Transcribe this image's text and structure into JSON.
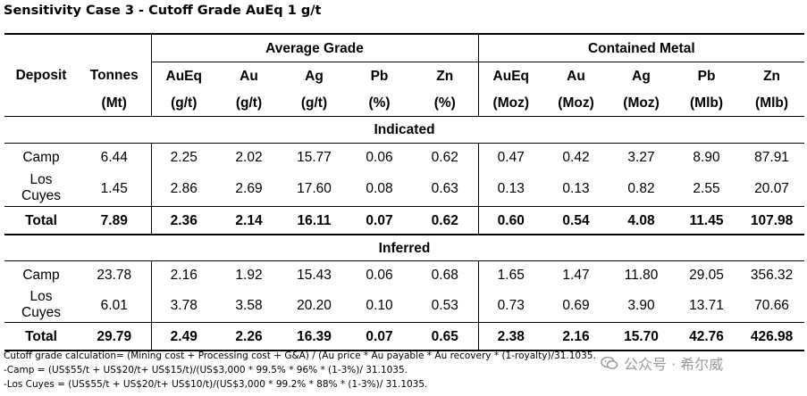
{
  "title": "Sensitivity Case 3 - Cutoff Grade AuEq 1 g/t",
  "header": {
    "group_average": "Average Grade",
    "group_contained": "Contained Metal",
    "deposit": "Deposit",
    "tonnes": "Tonnes",
    "tonnes_unit": "(Mt)",
    "avg": [
      {
        "name": "AuEq",
        "unit": "(g/t)"
      },
      {
        "name": "Au",
        "unit": "(g/t)"
      },
      {
        "name": "Ag",
        "unit": "(g/t)"
      },
      {
        "name": "Pb",
        "unit": "(%)"
      },
      {
        "name": "Zn",
        "unit": "(%)"
      }
    ],
    "metal": [
      {
        "name": "AuEq",
        "unit": "(Moz)"
      },
      {
        "name": "Au",
        "unit": "(Moz)"
      },
      {
        "name": "Ag",
        "unit": "(Moz)"
      },
      {
        "name": "Pb",
        "unit": "(Mlb)"
      },
      {
        "name": "Zn",
        "unit": "(Mlb)"
      }
    ]
  },
  "sections": [
    {
      "label": "Indicated",
      "rows": [
        {
          "deposit": "Camp",
          "values": [
            "6.44",
            "2.25",
            "2.02",
            "15.77",
            "0.06",
            "0.62",
            "0.47",
            "0.42",
            "3.27",
            "8.90",
            "87.91"
          ]
        },
        {
          "deposit_line1": "Los",
          "deposit_line2": "Cuyes",
          "values": [
            "1.45",
            "2.86",
            "2.69",
            "17.60",
            "0.08",
            "0.63",
            "0.13",
            "0.13",
            "0.82",
            "2.55",
            "20.07"
          ]
        }
      ],
      "total": {
        "label": "Total",
        "values": [
          "7.89",
          "2.36",
          "2.14",
          "16.11",
          "0.07",
          "0.62",
          "0.60",
          "0.54",
          "4.08",
          "11.45",
          "107.98"
        ]
      }
    },
    {
      "label": "Inferred",
      "rows": [
        {
          "deposit": "Camp",
          "values": [
            "23.78",
            "2.16",
            "1.92",
            "15.43",
            "0.06",
            "0.68",
            "1.65",
            "1.47",
            "11.80",
            "29.05",
            "356.32"
          ]
        },
        {
          "deposit_line1": "Los",
          "deposit_line2": "Cuyes",
          "values": [
            "6.01",
            "3.78",
            "3.58",
            "20.20",
            "0.10",
            "0.53",
            "0.73",
            "0.69",
            "3.90",
            "13.71",
            "70.66"
          ]
        }
      ],
      "total": {
        "label": "Total",
        "values": [
          "29.79",
          "2.49",
          "2.26",
          "16.39",
          "0.07",
          "0.65",
          "2.38",
          "2.16",
          "15.70",
          "42.76",
          "426.98"
        ]
      }
    }
  ],
  "footnotes": [
    "Cutoff grade calculation= (Mining cost + Processing cost + G&A) / (Au price * Au payable * Au recovery * (1-royalty)/31.1035.",
    "-Camp = (US$55/t + US$20/t+ US$15/t)/(US$3,000 * 99.5% * 96% * (1-3%)/ 31.1035.",
    "-Los Cuyes = (US$55/t + US$20/t+ US$10/t)/(US$3,000 * 99.2% * 88% * (1-3%)/ 31.1035."
  ],
  "watermark": "公众号 · 希尔威",
  "watermark_icon": "wechat-icon"
}
